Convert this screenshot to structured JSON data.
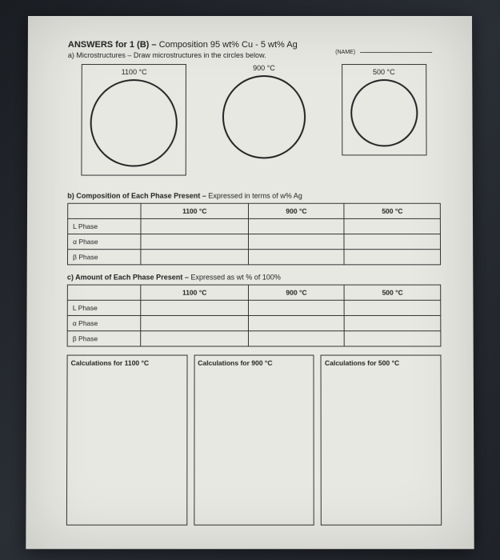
{
  "header": {
    "title_prefix": "ANSWERS for 1 (B) – ",
    "title_composition": "Composition 95 wt% Cu - 5 wt% Ag",
    "part_a": "a) Microstructures – Draw microstructures in the circles below.",
    "name_label": "(NAME)"
  },
  "circles": {
    "items": [
      {
        "temp": "1100 °C",
        "diameter": 105,
        "boxed": true
      },
      {
        "temp": "900 °C",
        "diameter": 100,
        "boxed": false
      },
      {
        "temp": "500 °C",
        "diameter": 80,
        "boxed": true
      }
    ]
  },
  "table_b": {
    "heading_bold": "b) Composition of Each Phase Present – ",
    "heading_rest": "Expressed in terms of w% Ag",
    "columns": [
      "1100 °C",
      "900 °C",
      "500 °C"
    ],
    "rows": [
      "L Phase",
      "α Phase",
      "β Phase"
    ]
  },
  "table_c": {
    "heading_bold": "c) Amount of Each Phase Present – ",
    "heading_rest": "Expressed as wt % of 100%",
    "columns": [
      "1100 °C",
      "900 °C",
      "500 °C"
    ],
    "rows": [
      "L Phase",
      "α Phase",
      "β Phase"
    ]
  },
  "calc": {
    "items": [
      "Calculations for 1100 °C",
      "Calculations for 900 °C",
      "Calculations for 500 °C"
    ]
  },
  "style": {
    "border_color": "#333333",
    "text_color": "#222222",
    "page_bg": "#e8e8e3"
  }
}
